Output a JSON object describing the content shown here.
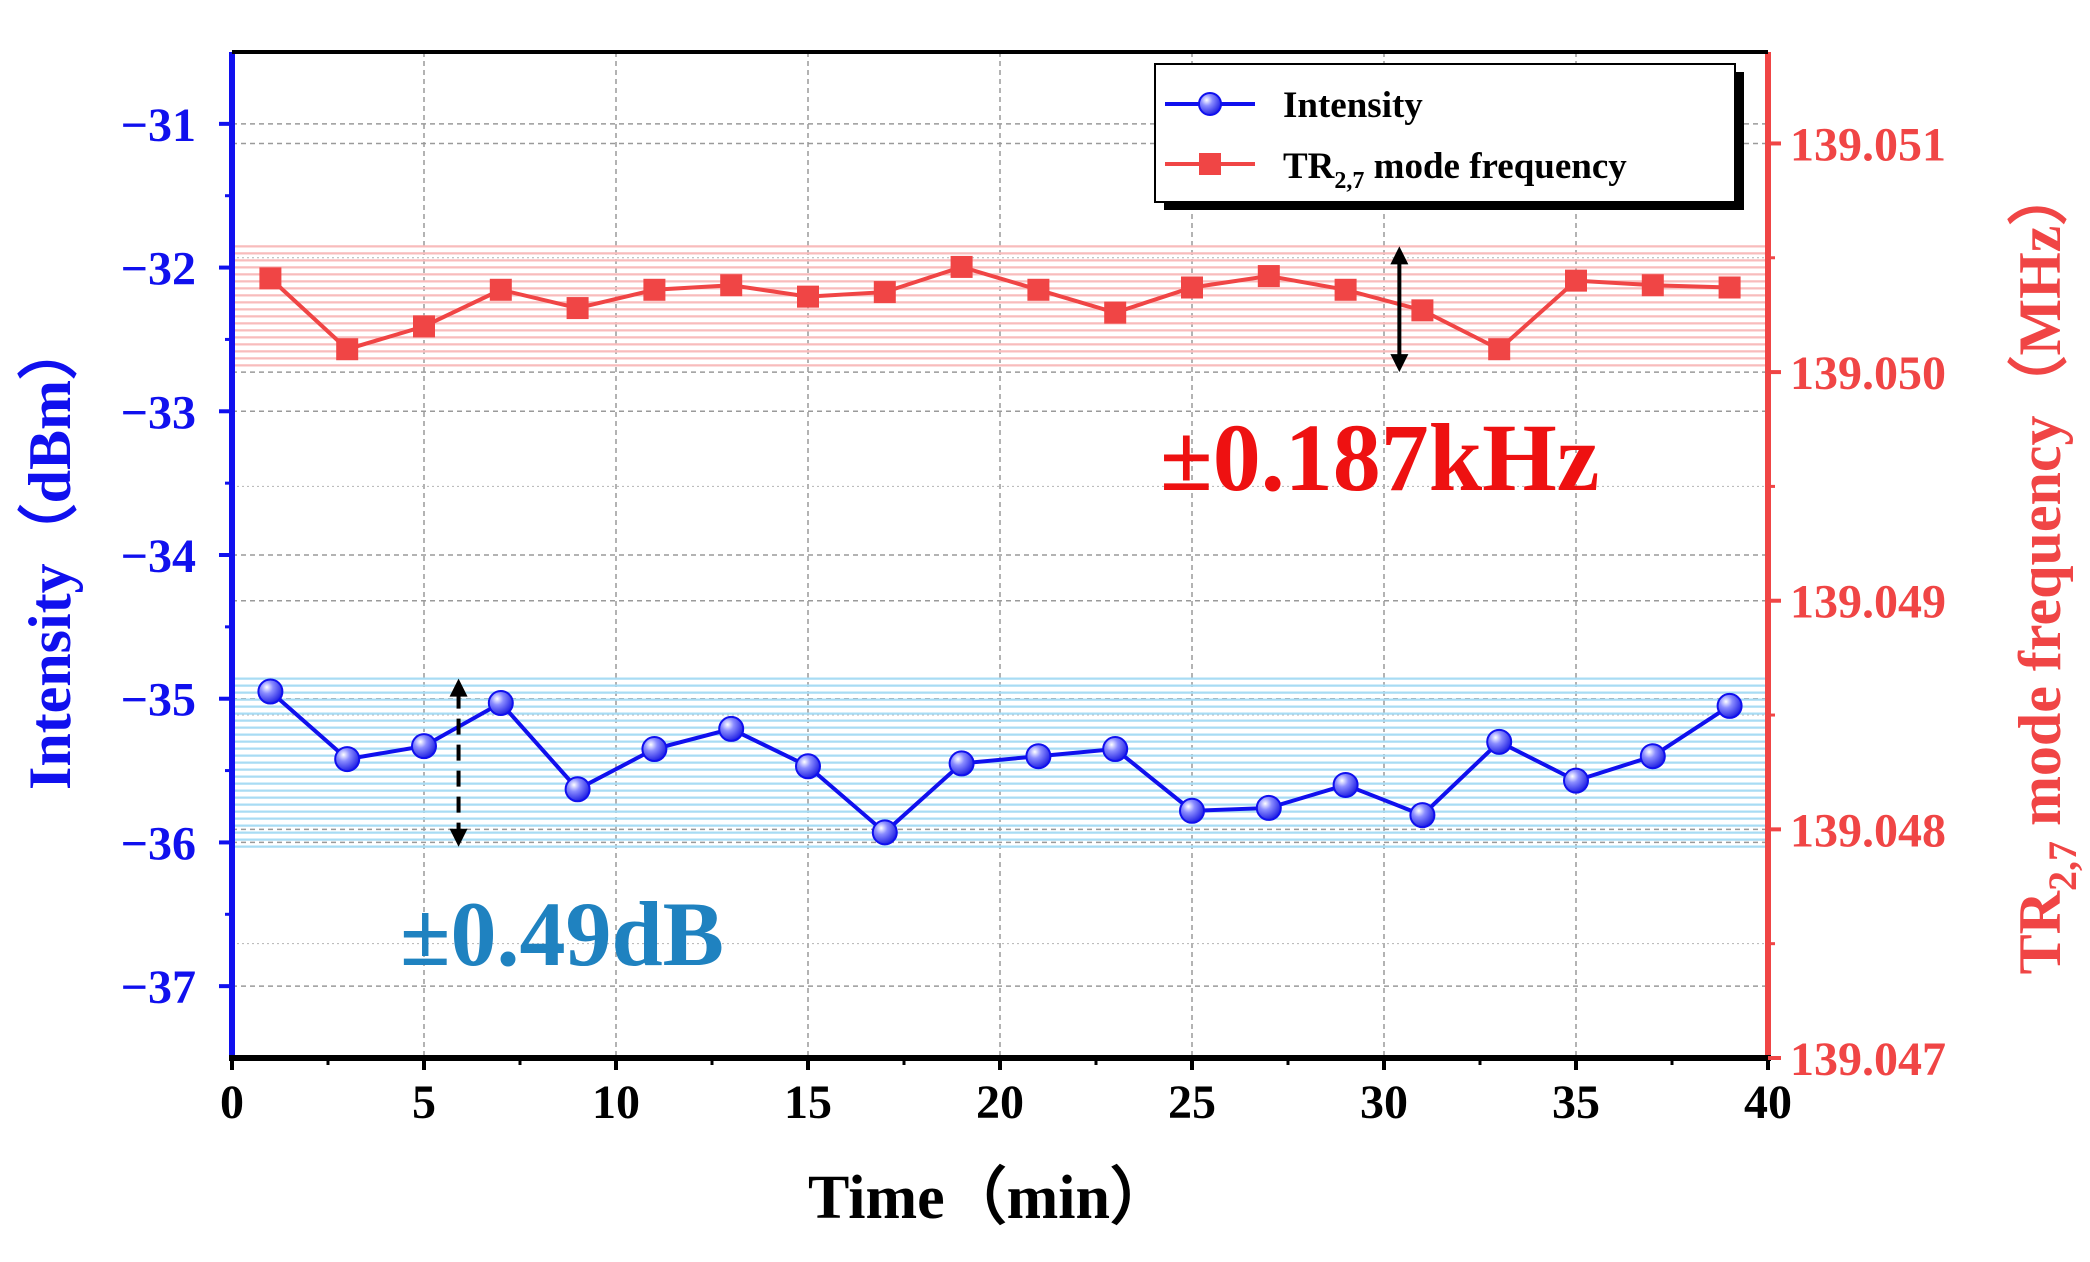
{
  "chart_data": {
    "type": "line",
    "x": [
      1,
      3,
      5,
      7,
      9,
      11,
      13,
      15,
      17,
      19,
      21,
      23,
      25,
      27,
      29,
      31,
      33,
      35,
      37,
      39
    ],
    "xlabel": "Time（min）",
    "xlim": [
      0,
      40
    ],
    "xticks": [
      "0",
      "5",
      "10",
      "15",
      "20",
      "25",
      "30",
      "35",
      "40"
    ],
    "left_axis": {
      "label": "Intensity（dBm）",
      "ylim": [
        -37.5,
        -30.5
      ],
      "ticks": [
        "−31",
        "−32",
        "−33",
        "−34",
        "−35",
        "−36",
        "−37"
      ]
    },
    "right_axis": {
      "label_pre": "TR",
      "label_sub": "2,7",
      "label_post": " mode frequency（MHz）",
      "ylim": [
        139.047,
        139.0514
      ],
      "ticks": [
        "139.047",
        "139.048",
        "139.049",
        "139.050",
        "139.051"
      ]
    },
    "series": [
      {
        "name": "Intensity",
        "axis": "left",
        "color": "#1010ee",
        "marker": "circle",
        "values": [
          -34.95,
          -35.42,
          -35.33,
          -35.03,
          -35.63,
          -35.35,
          -35.21,
          -35.47,
          -35.93,
          -35.45,
          -35.4,
          -35.35,
          -35.78,
          -35.76,
          -35.6,
          -35.81,
          -35.3,
          -35.57,
          -35.4,
          -35.05
        ]
      },
      {
        "name_pre": "TR",
        "name_sub": "2,7",
        "name_post": " mode frequency",
        "axis": "right",
        "color": "#f04545",
        "marker": "square",
        "values": [
          139.05041,
          139.0501,
          139.0502,
          139.05036,
          139.05028,
          139.05036,
          139.05038,
          139.05033,
          139.05035,
          139.05046,
          139.05036,
          139.05026,
          139.05037,
          139.05042,
          139.05036,
          139.05027,
          139.0501,
          139.0504,
          139.05038,
          139.05037
        ]
      }
    ],
    "bands": [
      {
        "axis": "left",
        "range": [
          -36.03,
          -34.86
        ],
        "color": "#a8dcf4"
      },
      {
        "axis": "right",
        "range": [
          139.05,
          139.05055
        ],
        "color": "#f8bcbc"
      }
    ],
    "annotations": [
      {
        "text": "±0.187kHz",
        "color": "#ee1111"
      },
      {
        "text": "±0.49dB",
        "color": "#1f82c0"
      }
    ],
    "legend_position": "top-right"
  }
}
